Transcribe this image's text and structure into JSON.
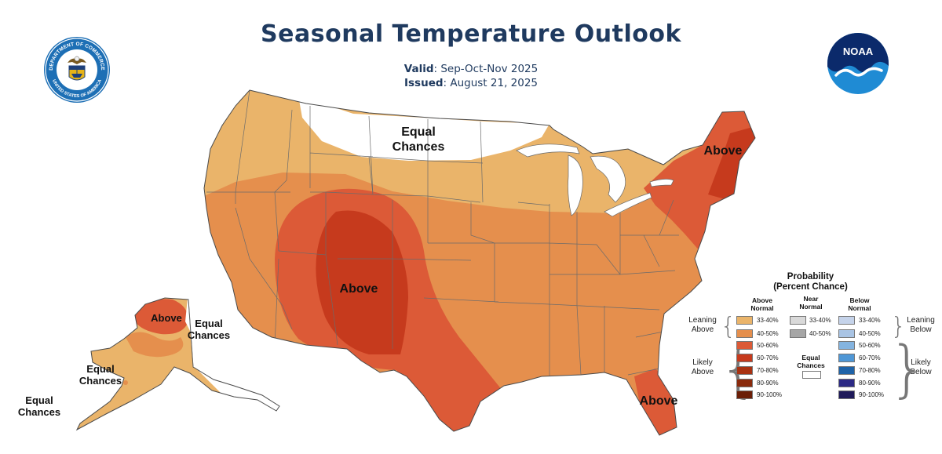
{
  "header": {
    "title": "Seasonal Temperature Outlook",
    "valid_label": "Valid",
    "valid_value": ": Sep-Oct-Nov 2025",
    "issued_label": "Issued",
    "issued_value": ": August 21, 2025"
  },
  "logos": {
    "doc_seal_top_text": "DEPARTMENT OF COMMERCE",
    "doc_seal_bottom_text": "UNITED STATES OF AMERICA",
    "noaa_text": "NOAA"
  },
  "map_labels": {
    "north_equal_1": "Equal",
    "north_equal_2": "Chances",
    "northeast_above": "Above",
    "southwest_above": "Above",
    "florida_above": "Above",
    "alaska_above": "Above",
    "alaska_equal_1_a": "Equal",
    "alaska_equal_1_b": "Chances",
    "alaska_equal_2_a": "Equal",
    "alaska_equal_2_b": "Chances",
    "alaska_equal_3_a": "Equal",
    "alaska_equal_3_b": "Chances"
  },
  "map_colors": {
    "above_33_40": "#eab46a",
    "above_40_50": "#e58f4d",
    "above_50_60": "#dc5a37",
    "above_60_70": "#c63a1d",
    "equal_chances": "#ffffff",
    "borders": "#6b6b6b"
  },
  "legend": {
    "title_1": "Probability",
    "title_2": "(Percent Chance)",
    "col_above_1": "Above",
    "col_above_2": "Normal",
    "col_near_1": "Near",
    "col_near_2": "Normal",
    "col_below_1": "Below",
    "col_below_2": "Normal",
    "leaning_above_1": "Leaning",
    "leaning_above_2": "Above",
    "leaning_below_1": "Leaning",
    "leaning_below_2": "Below",
    "likely_above_1": "Likely",
    "likely_above_2": "Above",
    "likely_below_1": "Likely",
    "likely_below_2": "Below",
    "equal_1": "Equal",
    "equal_2": "Chances",
    "above_ranges": [
      "33-40%",
      "40-50%",
      "50-60%",
      "60-70%",
      "70-80%",
      "80-90%",
      "90-100%"
    ],
    "near_ranges": [
      "33-40%",
      "40-50%"
    ],
    "below_ranges": [
      "33-40%",
      "40-50%",
      "50-60%",
      "60-70%",
      "70-80%",
      "80-90%",
      "90-100%"
    ],
    "above_colors": [
      "#eab46a",
      "#e58f4d",
      "#dc5a37",
      "#c63a1d",
      "#a93212",
      "#8a2a0c",
      "#6b1e07"
    ],
    "near_colors": [
      "#d9d9d9",
      "#a6a6a6"
    ],
    "below_colors": [
      "#c5d3ea",
      "#a9c4e4",
      "#84b4e0",
      "#4f97d6",
      "#1f63a8",
      "#2c2a85",
      "#1f1a5a"
    ]
  }
}
